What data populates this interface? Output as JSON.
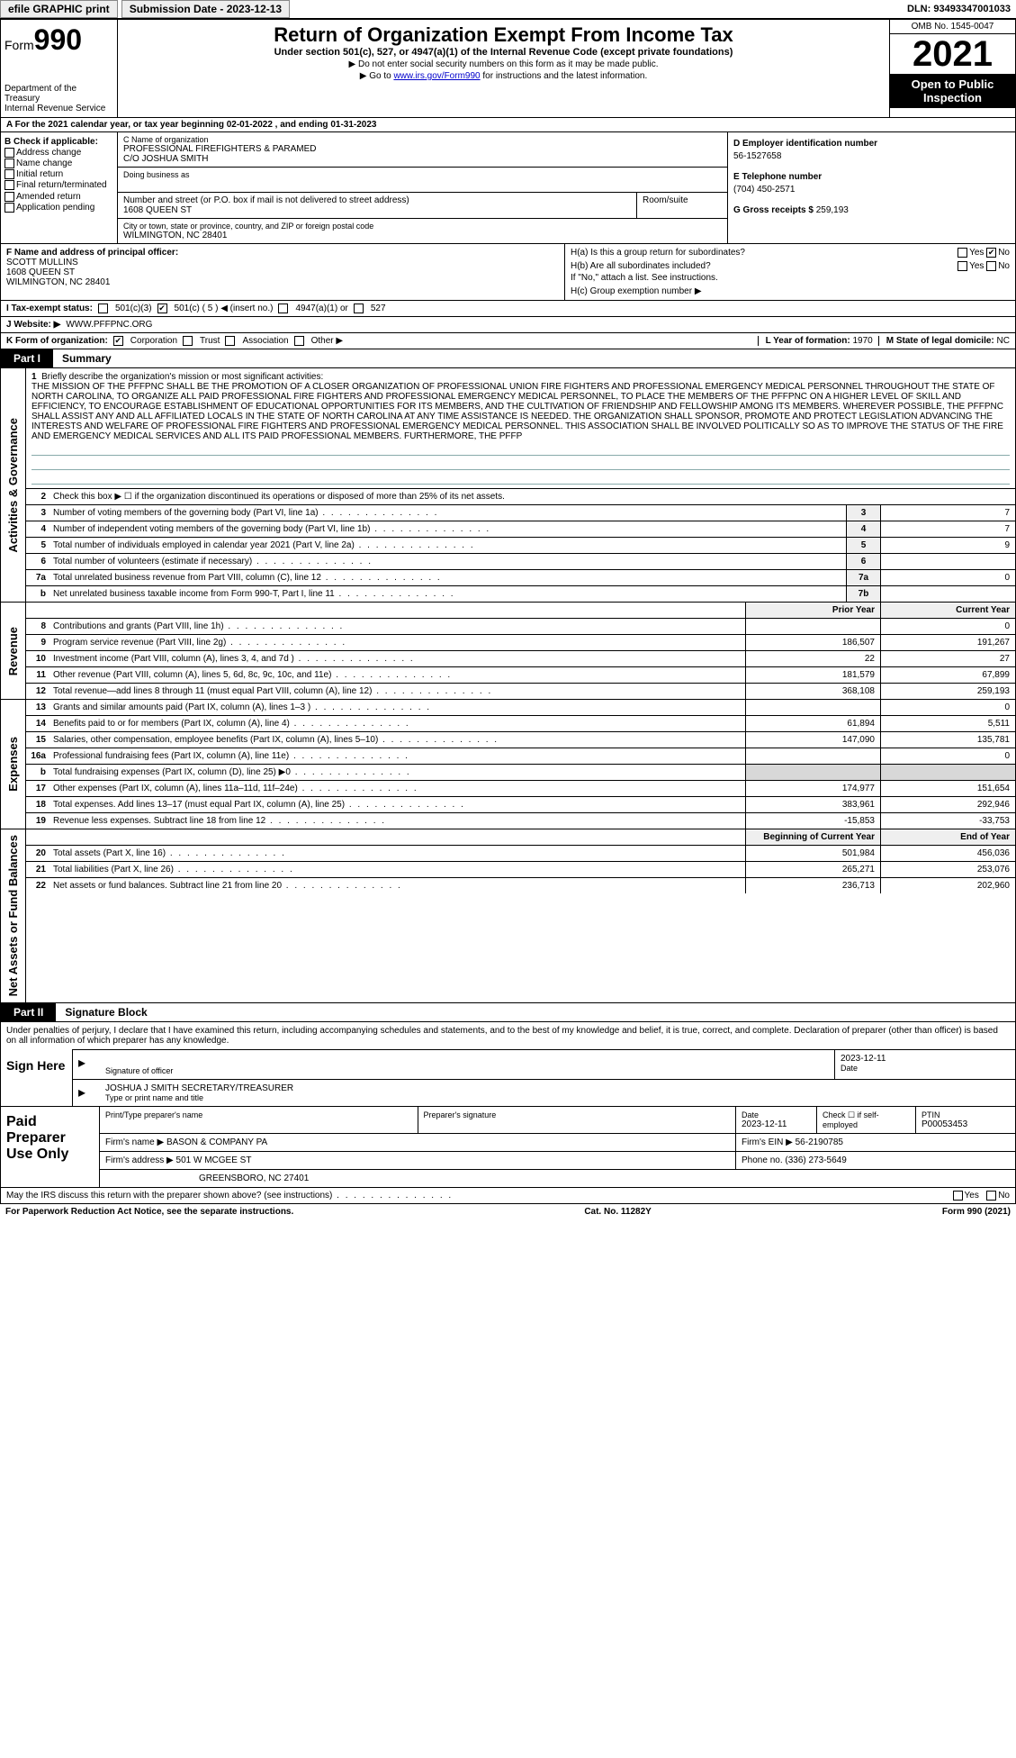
{
  "topbar": {
    "efile": "efile GRAPHIC print",
    "submission_label": "Submission Date - 2023-12-13",
    "dln": "DLN: 93493347001033"
  },
  "header": {
    "form_prefix": "Form",
    "form_num": "990",
    "dept": "Department of the Treasury",
    "irs": "Internal Revenue Service",
    "title": "Return of Organization Exempt From Income Tax",
    "subtitle": "Under section 501(c), 527, or 4947(a)(1) of the Internal Revenue Code (except private foundations)",
    "line1": "▶ Do not enter social security numbers on this form as it may be made public.",
    "line2_pre": "▶ Go to ",
    "line2_link": "www.irs.gov/Form990",
    "line2_post": " for instructions and the latest information.",
    "omb": "OMB No. 1545-0047",
    "year": "2021",
    "open": "Open to Public Inspection"
  },
  "rowA": "A  For the 2021 calendar year, or tax year beginning 02-01-2022  , and ending 01-31-2023",
  "colB": {
    "label": "B Check if applicable:",
    "items": [
      "Address change",
      "Name change",
      "Initial return",
      "Final return/terminated",
      "Amended return",
      "Application pending"
    ]
  },
  "colC": {
    "c_lab": "C Name of organization",
    "c_name": "PROFESSIONAL FIREFIGHTERS & PARAMED",
    "c_co": "C/O JOSHUA SMITH",
    "dba_lab": "Doing business as",
    "addr_lab": "Number and street (or P.O. box if mail is not delivered to street address)",
    "addr": "1608 QUEEN ST",
    "room_lab": "Room/suite",
    "city_lab": "City or town, state or province, country, and ZIP or foreign postal code",
    "city": "WILMINGTON, NC  28401"
  },
  "colD": {
    "d_lab": "D Employer identification number",
    "d_val": "56-1527658",
    "e_lab": "E Telephone number",
    "e_val": "(704) 450-2571",
    "g_lab": "G Gross receipts $",
    "g_val": "259,193"
  },
  "colF": {
    "lab": "F  Name and address of principal officer:",
    "name": "SCOTT MULLINS",
    "addr1": "1608 QUEEN ST",
    "addr2": "WILMINGTON, NC  28401"
  },
  "colH": {
    "ha": "H(a)  Is this a group return for subordinates?",
    "hb": "H(b)  Are all subordinates included?",
    "hb_note": "If \"No,\" attach a list. See instructions.",
    "hc": "H(c)  Group exemption number ▶",
    "yes": "Yes",
    "no": "No"
  },
  "lineI": {
    "lab": "I  Tax-exempt status:",
    "o1": "501(c)(3)",
    "o2": "501(c) ( 5 ) ◀ (insert no.)",
    "o3": "4947(a)(1) or",
    "o4": "527"
  },
  "lineJ": {
    "lab": "J  Website: ▶",
    "val": "WWW.PFFPNC.ORG"
  },
  "lineK": {
    "lab": "K Form of organization:",
    "o1": "Corporation",
    "o2": "Trust",
    "o3": "Association",
    "o4": "Other ▶",
    "l_lab": "L Year of formation:",
    "l_val": "1970",
    "m_lab": "M State of legal domicile:",
    "m_val": "NC"
  },
  "part1": {
    "tag": "Part I",
    "title": "Summary"
  },
  "mission": {
    "n": "1",
    "lab": "Briefly describe the organization's mission or most significant activities:",
    "text": "THE MISSION OF THE PFFPNC SHALL BE THE PROMOTION OF A CLOSER ORGANIZATION OF PROFESSIONAL UNION FIRE FIGHTERS AND PROFESSIONAL EMERGENCY MEDICAL PERSONNEL THROUGHOUT THE STATE OF NORTH CAROLINA, TO ORGANIZE ALL PAID PROFESSIONAL FIRE FIGHTERS AND PROFESSIONAL EMERGENCY MEDICAL PERSONNEL, TO PLACE THE MEMBERS OF THE PFFPNC ON A HIGHER LEVEL OF SKILL AND EFFICIENCY, TO ENCOURAGE ESTABLISHMENT OF EDUCATIONAL OPPORTUNITIES FOR ITS MEMBERS, AND THE CULTIVATION OF FRIENDSHIP AND FELLOWSHIP AMONG ITS MEMBERS. WHEREVER POSSIBLE, THE PFFPNC SHALL ASSIST ANY AND ALL AFFILIATED LOCALS IN THE STATE OF NORTH CAROLINA AT ANY TIME ASSISTANCE IS NEEDED. THE ORGANIZATION SHALL SPONSOR, PROMOTE AND PROTECT LEGISLATION ADVANCING THE INTERESTS AND WELFARE OF PROFESSIONAL FIRE FIGHTERS AND PROFESSIONAL EMERGENCY MEDICAL PERSONNEL. THIS ASSOCIATION SHALL BE INVOLVED POLITICALLY SO AS TO IMPROVE THE STATUS OF THE FIRE AND EMERGENCY MEDICAL SERVICES AND ALL ITS PAID PROFESSIONAL MEMBERS. FURTHERMORE, THE PFFP"
  },
  "gov": {
    "label": "Activities & Governance",
    "rows": [
      {
        "n": "2",
        "desc": "Check this box ▶ ☐ if the organization discontinued its operations or disposed of more than 25% of its net assets.",
        "box": "",
        "val": ""
      },
      {
        "n": "3",
        "desc": "Number of voting members of the governing body (Part VI, line 1a)",
        "box": "3",
        "val": "7"
      },
      {
        "n": "4",
        "desc": "Number of independent voting members of the governing body (Part VI, line 1b)",
        "box": "4",
        "val": "7"
      },
      {
        "n": "5",
        "desc": "Total number of individuals employed in calendar year 2021 (Part V, line 2a)",
        "box": "5",
        "val": "9"
      },
      {
        "n": "6",
        "desc": "Total number of volunteers (estimate if necessary)",
        "box": "6",
        "val": ""
      },
      {
        "n": "7a",
        "desc": "Total unrelated business revenue from Part VIII, column (C), line 12",
        "box": "7a",
        "val": "0"
      },
      {
        "n": "b",
        "desc": "Net unrelated business taxable income from Form 990-T, Part I, line 11",
        "box": "7b",
        "val": ""
      }
    ]
  },
  "rev": {
    "label": "Revenue",
    "hdr_prior": "Prior Year",
    "hdr_curr": "Current Year",
    "rows": [
      {
        "n": "8",
        "desc": "Contributions and grants (Part VIII, line 1h)",
        "p": "",
        "c": "0"
      },
      {
        "n": "9",
        "desc": "Program service revenue (Part VIII, line 2g)",
        "p": "186,507",
        "c": "191,267"
      },
      {
        "n": "10",
        "desc": "Investment income (Part VIII, column (A), lines 3, 4, and 7d )",
        "p": "22",
        "c": "27"
      },
      {
        "n": "11",
        "desc": "Other revenue (Part VIII, column (A), lines 5, 6d, 8c, 9c, 10c, and 11e)",
        "p": "181,579",
        "c": "67,899"
      },
      {
        "n": "12",
        "desc": "Total revenue—add lines 8 through 11 (must equal Part VIII, column (A), line 12)",
        "p": "368,108",
        "c": "259,193"
      }
    ]
  },
  "exp": {
    "label": "Expenses",
    "rows": [
      {
        "n": "13",
        "desc": "Grants and similar amounts paid (Part IX, column (A), lines 1–3 )",
        "p": "",
        "c": "0"
      },
      {
        "n": "14",
        "desc": "Benefits paid to or for members (Part IX, column (A), line 4)",
        "p": "61,894",
        "c": "5,511"
      },
      {
        "n": "15",
        "desc": "Salaries, other compensation, employee benefits (Part IX, column (A), lines 5–10)",
        "p": "147,090",
        "c": "135,781"
      },
      {
        "n": "16a",
        "desc": "Professional fundraising fees (Part IX, column (A), line 11e)",
        "p": "",
        "c": "0"
      },
      {
        "n": "b",
        "desc": "Total fundraising expenses (Part IX, column (D), line 25) ▶0",
        "p": "GREY",
        "c": "GREY"
      },
      {
        "n": "17",
        "desc": "Other expenses (Part IX, column (A), lines 11a–11d, 11f–24e)",
        "p": "174,977",
        "c": "151,654"
      },
      {
        "n": "18",
        "desc": "Total expenses. Add lines 13–17 (must equal Part IX, column (A), line 25)",
        "p": "383,961",
        "c": "292,946"
      },
      {
        "n": "19",
        "desc": "Revenue less expenses. Subtract line 18 from line 12",
        "p": "-15,853",
        "c": "-33,753"
      }
    ]
  },
  "net": {
    "label": "Net Assets or Fund Balances",
    "hdr_beg": "Beginning of Current Year",
    "hdr_end": "End of Year",
    "rows": [
      {
        "n": "20",
        "desc": "Total assets (Part X, line 16)",
        "p": "501,984",
        "c": "456,036"
      },
      {
        "n": "21",
        "desc": "Total liabilities (Part X, line 26)",
        "p": "265,271",
        "c": "253,076"
      },
      {
        "n": "22",
        "desc": "Net assets or fund balances. Subtract line 21 from line 20",
        "p": "236,713",
        "c": "202,960"
      }
    ]
  },
  "part2": {
    "tag": "Part II",
    "title": "Signature Block"
  },
  "sig": {
    "decl": "Under penalties of perjury, I declare that I have examined this return, including accompanying schedules and statements, and to the best of my knowledge and belief, it is true, correct, and complete. Declaration of preparer (other than officer) is based on all information of which preparer has any knowledge.",
    "sign_here": "Sign Here",
    "sig_officer": "Signature of officer",
    "date": "Date",
    "date_val": "2023-12-11",
    "name": "JOSHUA J SMITH  SECRETARY/TREASURER",
    "name_lab": "Type or print name and title"
  },
  "prep": {
    "label": "Paid Preparer Use Only",
    "h1": "Print/Type preparer's name",
    "h2": "Preparer's signature",
    "h3": "Date",
    "h3v": "2023-12-11",
    "h4": "Check ☐ if self-employed",
    "h5": "PTIN",
    "h5v": "P00053453",
    "firm_lab": "Firm's name    ▶",
    "firm": "BASON & COMPANY PA",
    "ein_lab": "Firm's EIN ▶",
    "ein": "56-2190785",
    "addr_lab": "Firm's address ▶",
    "addr1": "501 W MCGEE ST",
    "addr2": "GREENSBORO, NC  27401",
    "phone_lab": "Phone no.",
    "phone": "(336) 273-5649"
  },
  "discuss": {
    "text": "May the IRS discuss this return with the preparer shown above? (see instructions)",
    "yes": "Yes",
    "no": "No"
  },
  "footer": {
    "left": "For Paperwork Reduction Act Notice, see the separate instructions.",
    "mid": "Cat. No. 11282Y",
    "right": "Form 990 (2021)"
  },
  "colors": {
    "link": "#0000cc",
    "header_bg": "#000000",
    "grey_cell": "#d8d8d8",
    "box_bg": "#efefef",
    "rule": "#8aa0a0"
  }
}
